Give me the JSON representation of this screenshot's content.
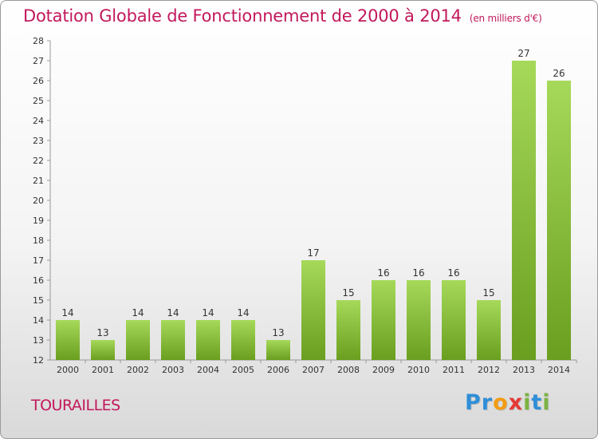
{
  "header": {
    "title": "Dotation Globale de Fonctionnement de 2000 à 2014",
    "subtitle": "(en milliers d'€)"
  },
  "footer": {
    "town": "TOURAILLES",
    "logo": [
      {
        "char": "P",
        "color": "#2f8fd8"
      },
      {
        "char": "r",
        "color": "#2f8fd8"
      },
      {
        "char": "o",
        "color": "#f39c12"
      },
      {
        "char": "x",
        "color": "#e53935"
      },
      {
        "char": "i",
        "color": "#7cb342"
      },
      {
        "char": "t",
        "color": "#2f8fd8"
      },
      {
        "char": "i",
        "color": "#7cb342"
      }
    ]
  },
  "chart_data": {
    "type": "bar",
    "categories": [
      "2000",
      "2001",
      "2002",
      "2003",
      "2004",
      "2005",
      "2006",
      "2007",
      "2008",
      "2009",
      "2010",
      "2011",
      "2012",
      "2013",
      "2014"
    ],
    "values": [
      14,
      13,
      14,
      14,
      14,
      14,
      13,
      17,
      15,
      16,
      16,
      16,
      15,
      27,
      26
    ],
    "ylim": [
      12,
      28
    ],
    "yticks": [
      12,
      13,
      14,
      15,
      16,
      17,
      18,
      19,
      20,
      21,
      22,
      23,
      24,
      25,
      26,
      27,
      28
    ],
    "grid": false,
    "bar_color_light": "#a6d95a",
    "bar_color_dark": "#6a9e1f",
    "axis_color": "#999999",
    "label_color": "#333333"
  }
}
